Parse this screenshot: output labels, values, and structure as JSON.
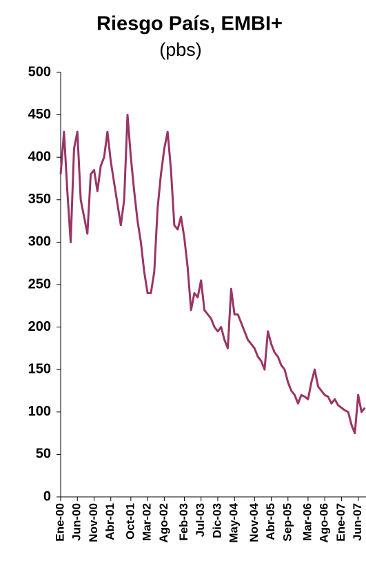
{
  "chart_data": {
    "type": "line",
    "title": "Riesgo País, EMBI+",
    "subtitle": "(pbs)",
    "categories": [
      "Ene-00",
      null,
      null,
      null,
      null,
      "Jun-00",
      null,
      null,
      null,
      null,
      "Nov-00",
      null,
      null,
      null,
      null,
      "Abr-01",
      null,
      null,
      null,
      null,
      null,
      "Oct-01",
      null,
      null,
      null,
      null,
      "Mar-02",
      null,
      null,
      null,
      null,
      "Ago-02",
      null,
      null,
      null,
      null,
      null,
      "Feb-03",
      null,
      null,
      null,
      null,
      "Jul-03",
      null,
      null,
      null,
      null,
      "Dic-03",
      null,
      null,
      null,
      null,
      "May-04",
      null,
      null,
      null,
      null,
      null,
      "Nov-04",
      null,
      null,
      null,
      null,
      "Abr-05",
      null,
      null,
      null,
      null,
      "Sep-05",
      null,
      null,
      null,
      null,
      null,
      "Mar-06",
      null,
      null,
      null,
      null,
      "Ago-06",
      null,
      null,
      null,
      null,
      "Ene-07",
      null,
      null,
      null,
      null,
      "Jun-07",
      null,
      null
    ],
    "series": [
      {
        "name": "EMBI+",
        "color": "#9b3464",
        "values": [
          380,
          430,
          360,
          300,
          410,
          430,
          350,
          330,
          310,
          380,
          385,
          360,
          390,
          400,
          430,
          395,
          370,
          345,
          320,
          350,
          450,
          400,
          360,
          325,
          300,
          265,
          240,
          240,
          265,
          340,
          380,
          410,
          430,
          385,
          320,
          315,
          330,
          305,
          270,
          220,
          240,
          235,
          255,
          220,
          215,
          210,
          200,
          195,
          200,
          185,
          175,
          245,
          215,
          215,
          205,
          195,
          185,
          180,
          175,
          165,
          160,
          150,
          195,
          180,
          170,
          165,
          155,
          150,
          135,
          125,
          120,
          110,
          120,
          118,
          115,
          135,
          150,
          130,
          125,
          120,
          118,
          110,
          115,
          108,
          105,
          102,
          100,
          85,
          75,
          120,
          100,
          105
        ]
      }
    ],
    "ylim": [
      0,
      500
    ],
    "yticks": [
      0,
      50,
      100,
      150,
      200,
      250,
      300,
      350,
      400,
      450,
      500
    ]
  }
}
